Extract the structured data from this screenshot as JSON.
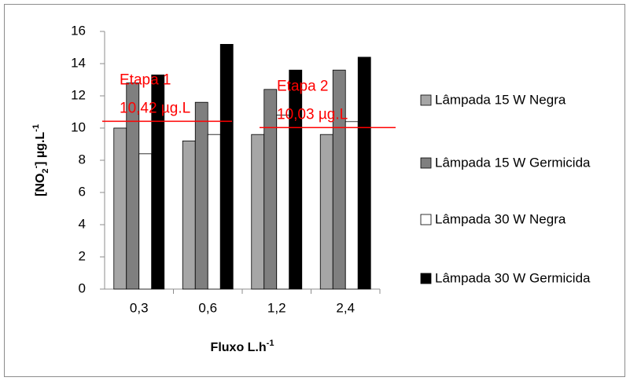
{
  "chart_data": {
    "type": "bar",
    "ylabel_parts": [
      "[NO",
      "2",
      "-",
      "] µg.L",
      "-1"
    ],
    "xlabel_parts": [
      "Fluxo L.h",
      "-1"
    ],
    "categories": [
      "0,3",
      "0,6",
      "1,2",
      "2,4"
    ],
    "series": [
      {
        "name": "Lâmpada 15 W Negra",
        "color": "#a6a6a6",
        "values": [
          10.0,
          9.2,
          9.6,
          9.6
        ]
      },
      {
        "name": "Lâmpada 15 W Germicida",
        "color": "#7f7f7f",
        "values": [
          12.8,
          11.6,
          12.4,
          13.6
        ]
      },
      {
        "name": "Lâmpada 30 W Negra",
        "color": "#ffffff",
        "values": [
          8.4,
          9.6,
          10.8,
          10.4
        ]
      },
      {
        "name": "Lâmpada 30 W Germicida",
        "color": "#000000",
        "values": [
          13.3,
          15.2,
          13.6,
          14.4
        ]
      }
    ],
    "ylim": [
      0,
      16
    ],
    "yticks": [
      0,
      2,
      4,
      6,
      8,
      10,
      12,
      14,
      16
    ],
    "annotations": [
      {
        "label": "Etapa 1",
        "value_label": "10,42 µg.L",
        "value": 10.42,
        "color": "#ff0000"
      },
      {
        "label": "Etapa 2",
        "value_label": "10,03 µg.L",
        "value": 10.03,
        "color": "#ff0000"
      }
    ]
  }
}
